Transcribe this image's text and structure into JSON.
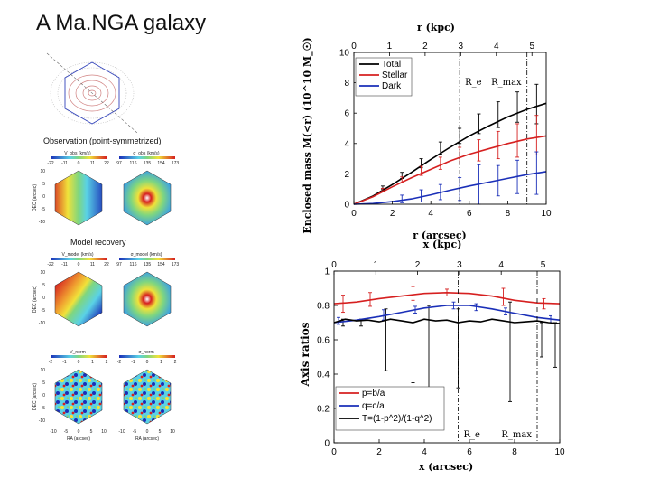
{
  "title": "A Ma.NGA galaxy",
  "colors": {
    "total": "#000000",
    "stellar": "#d62020",
    "dark": "#1a2fb8"
  },
  "maps": {
    "obs_header": "Observation (point-symmetrized)",
    "model_header": "Model recovery",
    "panels": [
      {
        "label": "V_obs (km/s)",
        "ticks": [
          "-22",
          "-11",
          "0",
          "11",
          "22"
        ],
        "kind": "velocity"
      },
      {
        "label": "σ_obs (km/s)",
        "ticks": [
          "97",
          "116",
          "135",
          "154",
          "173"
        ],
        "kind": "dispersion"
      },
      {
        "label": "V_model (km/s)",
        "ticks": [
          "-22",
          "-11",
          "0",
          "11",
          "22"
        ],
        "kind": "velocity"
      },
      {
        "label": "σ_model (km/s)",
        "ticks": [
          "97",
          "116",
          "135",
          "154",
          "173"
        ],
        "kind": "dispersion"
      },
      {
        "label": "V_norm",
        "ticks": [
          "-2",
          "-1",
          "0",
          "1",
          "2"
        ],
        "kind": "residual"
      },
      {
        "label": "σ_norm",
        "ticks": [
          "-2",
          "-1",
          "0",
          "1",
          "2"
        ],
        "kind": "residual"
      }
    ],
    "y_ticks": [
      "10",
      "5",
      "0",
      "-5",
      "-10"
    ],
    "x_ticks": [
      "-10",
      "-5",
      "0",
      "5",
      "10"
    ],
    "ylabel": "DEC (arcsec)",
    "xlabel": "RA (arcsec)"
  },
  "chart_data": [
    {
      "type": "line",
      "xlabel": "r (arcsec)",
      "ylabel": "Enclosed mass M(<r) (10^10 M_☉)",
      "top_xlabel": "r (kpc)",
      "xlim": [
        0,
        10
      ],
      "ylim": [
        0,
        10
      ],
      "top_xlim": [
        0,
        5.4
      ],
      "x_ticks": [
        0,
        2,
        4,
        6,
        8,
        10
      ],
      "y_ticks": [
        0,
        2,
        4,
        6,
        8,
        10
      ],
      "top_ticks": [
        0,
        1,
        2,
        3,
        4,
        5
      ],
      "legend_position": "top-left",
      "annotations": [
        {
          "text": "R_e",
          "x": 5.5
        },
        {
          "text": "R_max",
          "x": 9.0
        }
      ],
      "series": [
        {
          "name": "Total",
          "color": "#000000",
          "x": [
            0,
            1,
            2,
            3,
            4,
            5,
            6,
            7,
            8,
            9,
            10
          ],
          "y": [
            0,
            0.55,
            1.3,
            2.1,
            2.95,
            3.75,
            4.5,
            5.15,
            5.75,
            6.25,
            6.65
          ],
          "err_x": [
            1.5,
            2.5,
            3.5,
            4.5,
            5.5,
            6.5,
            7.5,
            8.5,
            9.5
          ],
          "err_y": [
            1.1,
            1.9,
            2.7,
            3.7,
            4.5,
            5.3,
            5.9,
            6.4,
            6.6
          ],
          "err_half": [
            0.1,
            0.2,
            0.3,
            0.4,
            0.5,
            0.65,
            0.85,
            1.0,
            1.3
          ]
        },
        {
          "name": "Stellar",
          "color": "#d62020",
          "x": [
            0,
            1,
            2,
            3,
            4,
            5,
            6,
            7,
            8,
            9,
            10
          ],
          "y": [
            0,
            0.5,
            1.15,
            1.75,
            2.3,
            2.85,
            3.3,
            3.65,
            4.0,
            4.3,
            4.5
          ],
          "err_x": [
            1.5,
            2.5,
            3.5,
            4.5,
            5.5,
            6.5,
            7.5,
            8.5,
            9.5
          ],
          "err_y": [
            0.95,
            1.6,
            2.2,
            2.7,
            3.2,
            3.55,
            3.9,
            4.2,
            4.55
          ],
          "err_half": [
            0.1,
            0.2,
            0.3,
            0.4,
            0.55,
            0.7,
            0.9,
            1.1,
            1.3
          ]
        },
        {
          "name": "Dark",
          "color": "#1a2fb8",
          "x": [
            0,
            1,
            2,
            3,
            4,
            5,
            6,
            7,
            8,
            9,
            10
          ],
          "y": [
            0,
            0.05,
            0.17,
            0.35,
            0.62,
            0.92,
            1.2,
            1.45,
            1.7,
            1.95,
            2.15
          ],
          "err_x": [
            2.5,
            3.5,
            4.5,
            5.5,
            6.5,
            7.5,
            8.5,
            9.5
          ],
          "err_y": [
            0.35,
            0.55,
            0.8,
            1.0,
            1.3,
            1.55,
            1.8,
            2.05
          ],
          "err_half": [
            0.25,
            0.4,
            0.5,
            0.75,
            1.3,
            1.0,
            1.1,
            1.4
          ]
        }
      ]
    },
    {
      "type": "line",
      "xlabel": "x (arcsec)",
      "ylabel": "Axis ratios",
      "top_xlabel": "x (kpc)",
      "xlim": [
        0,
        10
      ],
      "ylim": [
        0,
        1
      ],
      "top_xlim": [
        0,
        5.4
      ],
      "x_ticks": [
        0,
        2,
        4,
        6,
        8,
        10
      ],
      "y_ticks": [
        0,
        0.2,
        0.4,
        0.6,
        0.8,
        1
      ],
      "top_ticks": [
        0,
        1,
        2,
        3,
        4,
        5
      ],
      "legend_position": "bottom-left",
      "annotations": [
        {
          "text": "R_e",
          "x": 5.5
        },
        {
          "text": "R_max",
          "x": 9.0
        }
      ],
      "series": [
        {
          "name": "p=b/a",
          "color": "#d62020",
          "x": [
            0,
            1,
            2,
            3,
            4,
            5,
            6,
            7,
            8,
            9,
            10
          ],
          "y": [
            0.81,
            0.82,
            0.84,
            0.855,
            0.87,
            0.875,
            0.87,
            0.855,
            0.83,
            0.815,
            0.81
          ],
          "err_x": [
            0.4,
            1.6,
            3.5,
            5.0,
            7.5,
            9.3
          ],
          "err_y": [
            0.81,
            0.835,
            0.87,
            0.875,
            0.85,
            0.81
          ],
          "err_half": [
            0.05,
            0.04,
            0.04,
            0.02,
            0.05,
            0.03
          ]
        },
        {
          "name": "q=c/a",
          "color": "#1a2fb8",
          "x": [
            0,
            1,
            2,
            3,
            4,
            5,
            6,
            7,
            8,
            9,
            10
          ],
          "y": [
            0.7,
            0.715,
            0.735,
            0.76,
            0.785,
            0.8,
            0.8,
            0.78,
            0.755,
            0.73,
            0.715
          ],
          "err_x": [
            0.2,
            2.2,
            3.6,
            5.3,
            6.3,
            7.6,
            9.6
          ],
          "err_y": [
            0.71,
            0.745,
            0.775,
            0.8,
            0.79,
            0.765,
            0.72
          ],
          "err_half": [
            0.02,
            0.03,
            0.02,
            0.02,
            0.02,
            0.02,
            0.02
          ]
        },
        {
          "name": "T=(1-p^2)/(1-q^2)",
          "color": "#000000",
          "x": [
            0,
            0.5,
            1,
            1.5,
            2,
            2.5,
            3,
            3.5,
            4,
            4.5,
            5,
            5.5,
            6,
            6.5,
            7,
            7.5,
            8,
            8.5,
            9,
            9.5,
            10
          ],
          "y": [
            0.7,
            0.72,
            0.71,
            0.715,
            0.705,
            0.72,
            0.71,
            0.7,
            0.72,
            0.71,
            0.715,
            0.7,
            0.71,
            0.705,
            0.72,
            0.71,
            0.7,
            0.705,
            0.71,
            0.7,
            0.695
          ],
          "err_x": [
            0.4,
            1.2,
            2.3,
            3.5,
            4.2,
            5.5,
            7.8,
            9.2,
            9.8
          ],
          "err_y": [
            0.7,
            0.7,
            0.6,
            0.55,
            0.5,
            0.55,
            0.53,
            0.6,
            0.57
          ],
          "err_half": [
            0.02,
            0.02,
            0.18,
            0.2,
            0.3,
            0.23,
            0.29,
            0.1,
            0.13
          ]
        }
      ]
    }
  ]
}
